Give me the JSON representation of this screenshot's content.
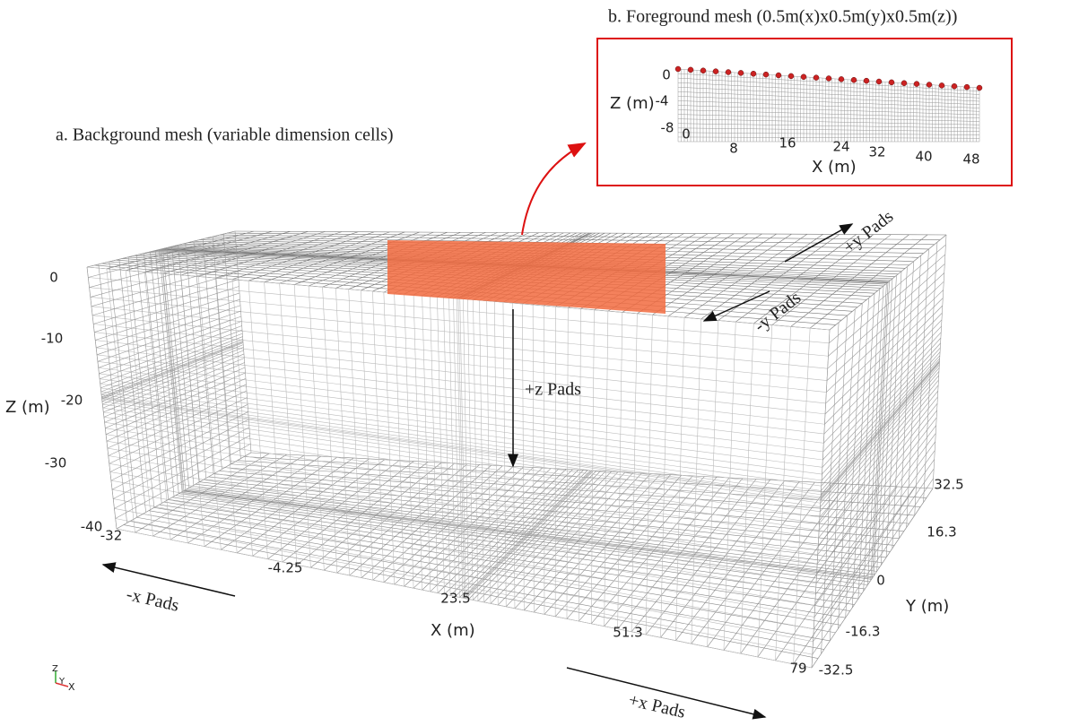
{
  "background_mesh": {
    "title": "a. Background mesh (variable dimension cells)",
    "z_axis": {
      "label": "Z (m)",
      "ticks": [
        "0",
        "-10",
        "-20",
        "-30",
        "-40"
      ]
    },
    "x_axis": {
      "label": "X (m)",
      "ticks": [
        "-32",
        "-4.25",
        "23.5",
        "51.3",
        "79"
      ]
    },
    "y_axis": {
      "label": "Y (m)",
      "ticks": [
        "32.5",
        "16.3",
        "0",
        "-16.3",
        "-32.5"
      ]
    },
    "pads": [
      "+z Pads",
      "+y Pads",
      "-y Pads",
      "-x Pads",
      "+x Pads"
    ]
  },
  "foreground_mesh": {
    "title": "b. Foreground mesh (0.5m(x)x0.5m(y)x0.5m(z))",
    "z_axis": {
      "label": "Z (m)",
      "ticks": [
        "0",
        "-4",
        "-8"
      ]
    },
    "x_axis": {
      "label": "X (m)",
      "ticks": [
        "0",
        "8",
        "16",
        "24",
        "32",
        "40",
        "48"
      ]
    }
  },
  "orientation": {
    "labels": [
      "Z",
      "Y",
      "X"
    ]
  }
}
